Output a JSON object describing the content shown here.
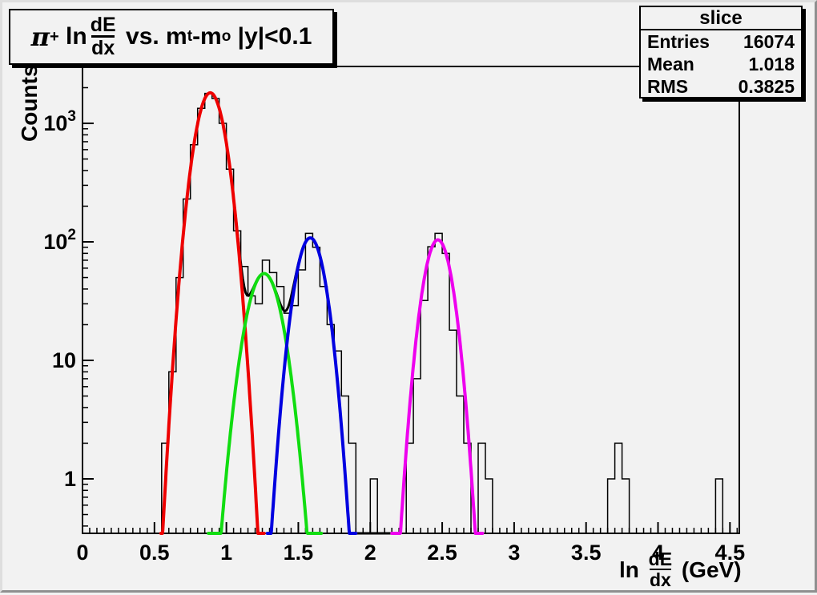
{
  "window": {
    "bg": "#f2f2f2"
  },
  "title_box": {
    "pi": "π",
    "pi_sup": "+",
    "ln": " ln",
    "frac_num": "dE",
    "frac_den": "dx",
    "vs": " vs. m",
    "sub_t": "t",
    "m2": "-m",
    "sub_o": "o",
    "cut": " |y|<0.1"
  },
  "stats_box": {
    "title": "slice",
    "rows": [
      {
        "label": "Entries",
        "value": "16074"
      },
      {
        "label": "Mean",
        "value": "1.018"
      },
      {
        "label": "RMS",
        "value": "0.3825"
      }
    ]
  },
  "x_axis": {
    "title_ln": "ln ",
    "frac_num": "dE",
    "frac_den": "dx",
    "unit": " (GeV)"
  },
  "y_axis": {
    "title": "Counts"
  },
  "chart_data": {
    "type": "histogram",
    "title": "π+ ln dE/dx vs. mt-mo |y|<0.1",
    "xlabel": "ln dE/dx (GeV)",
    "ylabel": "Counts",
    "x_scale": "linear",
    "y_scale": "log",
    "x_range": [
      0,
      4.565
    ],
    "y_range": [
      0.347,
      3020
    ],
    "x_major_ticks": [
      {
        "v": 0,
        "label": "0"
      },
      {
        "v": 0.5,
        "label": "0.5"
      },
      {
        "v": 1,
        "label": "1"
      },
      {
        "v": 1.5,
        "label": "1.5"
      },
      {
        "v": 2,
        "label": "2"
      },
      {
        "v": 2.5,
        "label": "2.5"
      },
      {
        "v": 3,
        "label": "3"
      },
      {
        "v": 3.5,
        "label": "3.5"
      },
      {
        "v": 4,
        "label": "4"
      },
      {
        "v": 4.5,
        "label": "4.5"
      }
    ],
    "x_minor_step": 0.05,
    "y_major_ticks": [
      {
        "v": 1,
        "base": "1",
        "exp": ""
      },
      {
        "v": 10,
        "base": "10",
        "exp": ""
      },
      {
        "v": 100,
        "base": "10",
        "exp": "2"
      },
      {
        "v": 1000,
        "base": "10",
        "exp": "3"
      }
    ],
    "histogram": {
      "color": "#000000",
      "bin_start": 0.55,
      "bin_width": 0.05,
      "counts": [
        2,
        8,
        50,
        230,
        660,
        1340,
        1790,
        1620,
        1000,
        410,
        124,
        62,
        35,
        30,
        70,
        55,
        42,
        25,
        29,
        58,
        118,
        90,
        42,
        20,
        12,
        5,
        2,
        0,
        0,
        1,
        0,
        0,
        0,
        0,
        2,
        7,
        32,
        91,
        118,
        80,
        18,
        5,
        2,
        0,
        2,
        1,
        0,
        0,
        0,
        0,
        0,
        0,
        0,
        0,
        0,
        0,
        0,
        0,
        0,
        0,
        0,
        0,
        1,
        2,
        1,
        0,
        0,
        0,
        0,
        0,
        0,
        0,
        0,
        0,
        0,
        0,
        0,
        1
      ]
    },
    "fits": [
      {
        "id": "red",
        "color": "#ee0000",
        "amp": 1810,
        "mean": 0.888,
        "sigma": 0.08,
        "range": [
          0.545,
          1.262
        ]
      },
      {
        "id": "green",
        "color": "#11dd11",
        "amp": 54,
        "mean": 1.262,
        "sigma": 0.094,
        "range": [
          0.875,
          1.66
        ]
      },
      {
        "id": "blue",
        "color": "#0000e0",
        "amp": 108,
        "mean": 1.583,
        "sigma": 0.08,
        "range": [
          1.285,
          1.9
        ]
      },
      {
        "id": "magenta",
        "color": "#ee00ee",
        "amp": 104,
        "mean": 2.47,
        "sigma": 0.077,
        "range": [
          2.15,
          2.78
        ]
      }
    ],
    "total_fit": {
      "color": "#000000",
      "range": [
        0.545,
        2.78
      ]
    },
    "stats": {
      "entries": 16074,
      "mean": 1.018,
      "rms": 0.3825
    }
  }
}
